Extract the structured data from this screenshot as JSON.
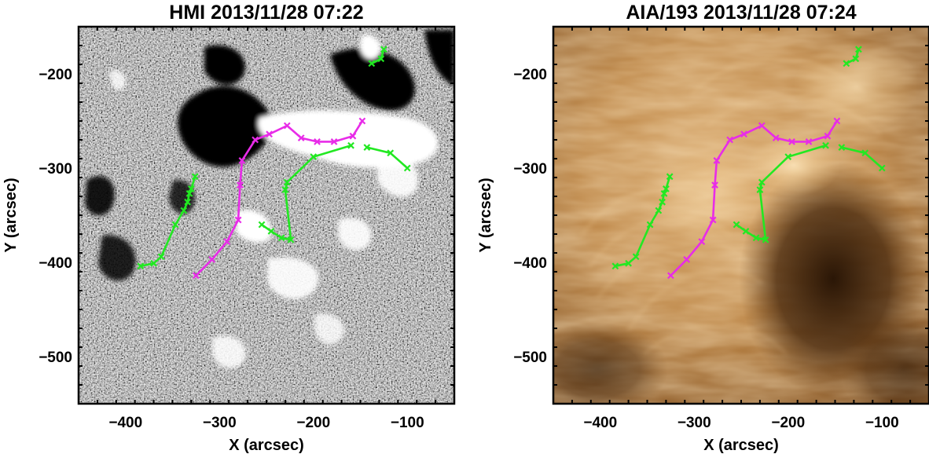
{
  "panels": [
    {
      "id": "hmi",
      "title": "HMI 2013/11/28 07:22",
      "xlabel": "X (arcsec)",
      "ylabel": "Y (arcsec)",
      "xlim": [
        -450,
        -50
      ],
      "ylim": [
        -550,
        -150
      ],
      "xticks": [
        -400,
        -300,
        -200,
        -100
      ],
      "yticks": [
        -500,
        -400,
        -300,
        -200
      ],
      "background": "magnetogram-grayscale"
    },
    {
      "id": "aia",
      "title": "AIA/193 2013/11/28 07:24",
      "xlabel": "X (arcsec)",
      "ylabel": "Y (arcsec)",
      "xlim": [
        -450,
        -50
      ],
      "ylim": [
        -550,
        -150
      ],
      "xticks": [
        -400,
        -300,
        -200,
        -100
      ],
      "yticks": [
        -500,
        -400,
        -300,
        -200
      ],
      "background": "euv-copper"
    }
  ],
  "colors": {
    "green": "#22e822",
    "magenta": "#e82ce8"
  },
  "traces": [
    {
      "color": "green",
      "points": [
        [
          -384,
          -404
        ],
        [
          -370,
          -401
        ],
        [
          -362,
          -394
        ],
        [
          -347,
          -360
        ],
        [
          -338,
          -345
        ],
        [
          -334,
          -336
        ],
        [
          -332,
          -327
        ],
        [
          -330,
          -322
        ],
        [
          -326,
          -309
        ]
      ]
    },
    {
      "color": "magenta",
      "points": [
        [
          -325,
          -414
        ],
        [
          -308,
          -397
        ],
        [
          -292,
          -378
        ],
        [
          -280,
          -355
        ],
        [
          -278,
          -318
        ],
        [
          -276,
          -292
        ],
        [
          -262,
          -270
        ],
        [
          -247,
          -264
        ],
        [
          -228,
          -255
        ],
        [
          -213,
          -268
        ],
        [
          -196,
          -272
        ],
        [
          -178,
          -272
        ],
        [
          -158,
          -266
        ],
        [
          -148,
          -250
        ]
      ]
    },
    {
      "color": "green",
      "points": [
        [
          -255,
          -360
        ],
        [
          -245,
          -367
        ],
        [
          -234,
          -374
        ],
        [
          -224,
          -376
        ],
        [
          -230,
          -323
        ],
        [
          -228,
          -315
        ],
        [
          -200,
          -288
        ],
        [
          -160,
          -276
        ]
      ]
    },
    {
      "color": "green",
      "points": [
        [
          -143,
          -278
        ],
        [
          -118,
          -284
        ],
        [
          -100,
          -300
        ]
      ]
    },
    {
      "color": "green",
      "points": [
        [
          -138,
          -189
        ],
        [
          -128,
          -184
        ],
        [
          -125,
          -174
        ]
      ]
    }
  ]
}
